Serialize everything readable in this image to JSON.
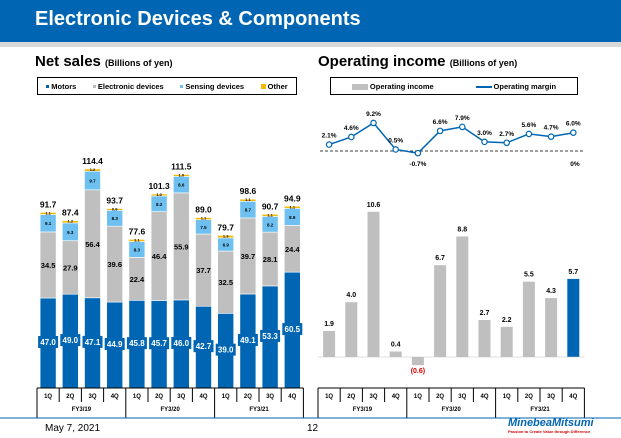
{
  "title": "Electronic Devices & Components",
  "footer": {
    "date": "May 7, 2021",
    "page": "12",
    "logo": "MinebeaMitsumi",
    "tagline": "Passion to Create Value through Difference"
  },
  "colors": {
    "brand": "#0066b3",
    "motors": "#0066b3",
    "electronic": "#bfbfbf",
    "sensing": "#6ec0f0",
    "other": "#f5b800",
    "income": "#bfbfbf",
    "income_last": "#0066b3",
    "margin": "#0066b3"
  },
  "chart_data": [
    {
      "type": "bar",
      "stacked": true,
      "title": "Net sales",
      "unit": "(Billions of yen)",
      "categories": [
        "1Q",
        "2Q",
        "3Q",
        "4Q",
        "1Q",
        "2Q",
        "3Q",
        "4Q",
        "1Q",
        "2Q",
        "3Q",
        "4Q"
      ],
      "groups": [
        "FY3/19",
        "FY3/20",
        "FY3/21"
      ],
      "legend": "top",
      "series": [
        {
          "name": "Motors",
          "values": [
            47.0,
            49.0,
            47.1,
            44.9,
            45.8,
            45.7,
            46.0,
            42.7,
            39.0,
            49.1,
            53.3,
            60.5
          ]
        },
        {
          "name": "Electronic devices",
          "values": [
            34.5,
            27.9,
            56.4,
            39.6,
            22.4,
            46.4,
            55.9,
            37.7,
            32.5,
            39.7,
            28.1,
            24.4
          ]
        },
        {
          "name": "Sensing devices",
          "values": [
            9.1,
            9.3,
            9.7,
            8.3,
            8.3,
            8.2,
            8.6,
            7.5,
            6.9,
            8.7,
            8.2,
            8.9
          ]
        },
        {
          "name": "Other",
          "values": [
            1.1,
            1.2,
            1.2,
            0.9,
            1.1,
            1.0,
            1.0,
            1.1,
            1.3,
            1.1,
            1.1,
            1.1
          ]
        }
      ],
      "totals": [
        "91.7",
        "87.4",
        "114.4",
        "93.7",
        "77.6",
        "101.3",
        "111.5",
        "89.0",
        "79.7",
        "98.6",
        "90.7",
        "94.9"
      ]
    },
    {
      "type": "bar",
      "title": "Operating income",
      "unit": "(Billions of yen)",
      "categories": [
        "1Q",
        "2Q",
        "3Q",
        "4Q",
        "1Q",
        "2Q",
        "3Q",
        "4Q",
        "1Q",
        "2Q",
        "3Q",
        "4Q"
      ],
      "groups": [
        "FY3/19",
        "FY3/20",
        "FY3/21"
      ],
      "legend": "top",
      "series": [
        {
          "name": "Operating income",
          "values": [
            1.9,
            4.0,
            10.6,
            0.4,
            -0.6,
            6.7,
            8.8,
            2.7,
            2.2,
            5.5,
            4.3,
            5.7
          ],
          "labels": [
            "1.9",
            "4.0",
            "10.6",
            "0.4",
            "(0.6)",
            "6.7",
            "8.8",
            "2.7",
            "2.2",
            "5.5",
            "4.3",
            "5.7"
          ]
        },
        {
          "name": "Operating margin",
          "type": "line",
          "values": [
            2.1,
            4.6,
            9.2,
            0.5,
            -0.7,
            6.6,
            7.9,
            3.0,
            2.7,
            5.6,
            4.7,
            6.0
          ],
          "labels": [
            "2.1%",
            "4.6%",
            "9.2%",
            "0.5%",
            "-0.7%",
            "6.6%",
            "7.9%",
            "3.0%",
            "2.7%",
            "5.6%",
            "4.7%",
            "6.0%"
          ]
        }
      ],
      "zero_label": "0%"
    }
  ]
}
